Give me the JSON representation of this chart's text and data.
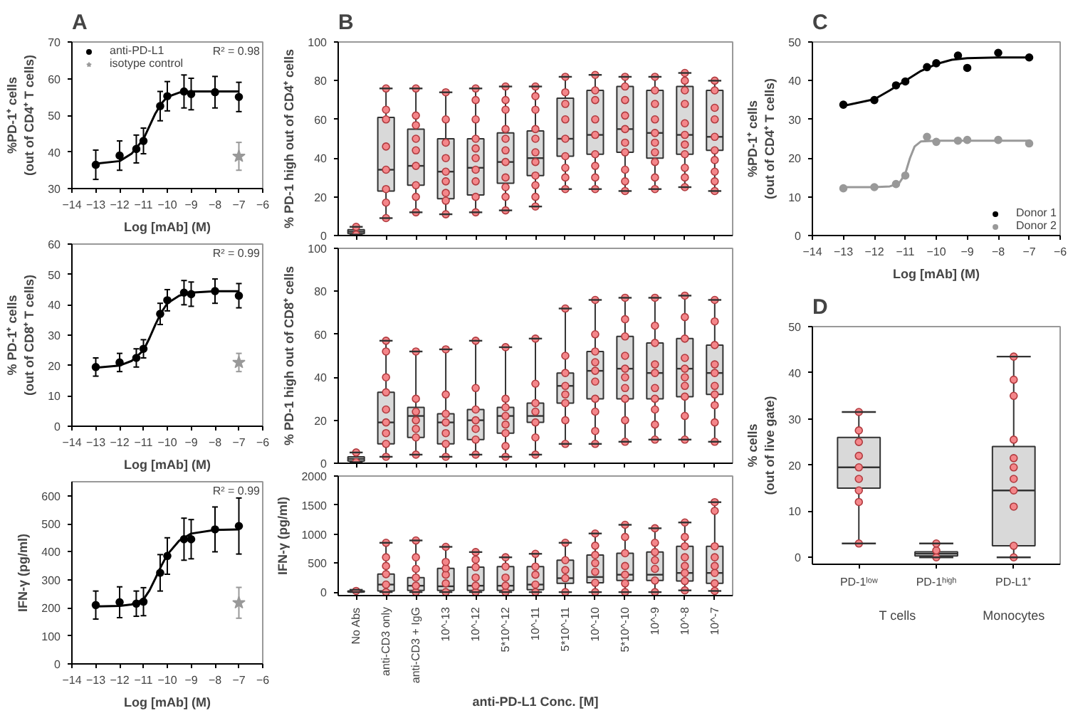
{
  "chart_data": [
    {
      "type": "scatter",
      "title": "A",
      "xlabel": "Log [mAb] (M)",
      "ylabel": "%PD-1⁺ cells\n(out of CD4⁺ T cells)",
      "xlim": [
        -14,
        -6
      ],
      "xticks": [
        -14,
        -13,
        -12,
        -11,
        -10,
        -9,
        -8,
        -7,
        -6
      ],
      "ylim": [
        30,
        70
      ],
      "yticks": [
        30,
        40,
        50,
        60,
        70
      ],
      "legend": "top left",
      "annotations": [
        "R² = 0.98"
      ],
      "series": [
        {
          "name": "anti-PD-L1",
          "type": "scatter",
          "marker": "circle",
          "color": "#000000",
          "x": [
            -13,
            -12,
            -11.3,
            -11,
            -10.3,
            -10,
            -9.3,
            -9,
            -8,
            -7
          ],
          "values": [
            36.5,
            39,
            40.8,
            43,
            52.5,
            55.2,
            56.5,
            55.8,
            56.3,
            55
          ],
          "errors": [
            4,
            4,
            3.8,
            3.5,
            4,
            4,
            4.5,
            4.3,
            4.3,
            4
          ]
        },
        {
          "type": "line",
          "color": "#000000",
          "x": [
            -13,
            -12,
            -11.5,
            -11,
            -10.75,
            -10.5,
            -10.25,
            -10,
            -9.5,
            -9,
            -8,
            -7
          ],
          "values": [
            36.8,
            37.5,
            39.5,
            43.5,
            47,
            50.5,
            53.2,
            55,
            56.2,
            56.5,
            56.5,
            56.5
          ]
        },
        {
          "name": "isotype control",
          "type": "scatter",
          "marker": "star",
          "color": "#999999",
          "x": [
            -7
          ],
          "values": [
            38.8
          ],
          "errors": [
            3.8
          ]
        }
      ]
    },
    {
      "type": "scatter",
      "xlabel": "Log [mAb] (M)",
      "ylabel": "% PD-1⁺ cells\n(out of CD8⁺ T cells)",
      "xlim": [
        -14,
        -6
      ],
      "xticks": [
        -14,
        -13,
        -12,
        -11,
        -10,
        -9,
        -8,
        -7,
        -6
      ],
      "ylim": [
        0,
        60
      ],
      "yticks": [
        0,
        10,
        20,
        30,
        40,
        50,
        60
      ],
      "annotations": [
        "R² = 0.99"
      ],
      "series": [
        {
          "type": "scatter",
          "marker": "circle",
          "color": "#000000",
          "x": [
            -13,
            -12,
            -11.3,
            -11,
            -10.3,
            -10,
            -9.3,
            -9,
            -8,
            -7
          ],
          "values": [
            19.5,
            21,
            22.5,
            25.5,
            37,
            41.5,
            44,
            43.5,
            44.5,
            43
          ],
          "errors": [
            3,
            3,
            3,
            3,
            3.5,
            3.5,
            4,
            4,
            4,
            4
          ]
        },
        {
          "type": "line",
          "color": "#000000",
          "x": [
            -13,
            -12,
            -11.5,
            -11,
            -10.75,
            -10.5,
            -10.25,
            -10,
            -9.5,
            -9,
            -8,
            -7
          ],
          "values": [
            19.3,
            20,
            21.5,
            25,
            29,
            33.5,
            37.5,
            40.5,
            43,
            44,
            44.5,
            44.5
          ]
        },
        {
          "type": "scatter",
          "marker": "star",
          "color": "#999999",
          "x": [
            -7
          ],
          "values": [
            21
          ],
          "errors": [
            3
          ]
        }
      ]
    },
    {
      "type": "scatter",
      "xlabel": "Log [mAb] (M)",
      "ylabel": "IFN-γ (pg/ml)",
      "xlim": [
        -14,
        -6
      ],
      "xticks": [
        -14,
        -13,
        -12,
        -11,
        -10,
        -9,
        -8,
        -7,
        -6
      ],
      "ylim": [
        0,
        650
      ],
      "yticks": [
        0,
        100,
        200,
        300,
        400,
        500,
        600
      ],
      "annotations": [
        "R² = 0.99"
      ],
      "series": [
        {
          "type": "scatter",
          "marker": "circle",
          "color": "#000000",
          "x": [
            -13,
            -12,
            -11.3,
            -11,
            -10.3,
            -10,
            -9.3,
            -9,
            -8,
            -7
          ],
          "values": [
            210,
            220,
            215,
            222,
            325,
            385,
            445,
            445,
            480,
            492
          ],
          "errors": [
            50,
            55,
            45,
            50,
            65,
            65,
            75,
            70,
            80,
            100
          ]
        },
        {
          "type": "line",
          "color": "#000000",
          "x": [
            -13,
            -12,
            -11.5,
            -11,
            -10.75,
            -10.5,
            -10.25,
            -10,
            -9.5,
            -9,
            -8,
            -7
          ],
          "values": [
            205,
            207,
            212,
            230,
            262,
            305,
            350,
            390,
            440,
            465,
            478,
            480
          ]
        },
        {
          "type": "scatter",
          "marker": "star",
          "color": "#999999",
          "x": [
            -7
          ],
          "values": [
            218
          ],
          "errors": [
            55
          ]
        }
      ]
    },
    {
      "type": "box",
      "title": "B",
      "ylabel": "% PD-1 high out of CD4⁺ cells",
      "color": "#d9d9d9",
      "tick_labels": "y",
      "ylim": [
        0,
        100
      ],
      "yticks": [
        0,
        20,
        40,
        60,
        80,
        100
      ],
      "categories": [
        "No Abs",
        "anti-CD3 only",
        "anti-CD3 + IgG",
        "10^-13",
        "10^-12",
        "5*10^-12",
        "10^-11",
        "5*10^-11",
        "10^-10",
        "5*10^-10",
        "10^-9",
        "10^-8",
        "10^-7"
      ],
      "boxes": [
        {
          "low": 0.5,
          "q1": 1,
          "median": 2,
          "q3": 3,
          "high": 4.5
        },
        {
          "low": 9,
          "q1": 23,
          "median": 34,
          "q3": 61,
          "high": 76
        },
        {
          "low": 12,
          "q1": 26,
          "median": 36,
          "q3": 55,
          "high": 76
        },
        {
          "low": 11,
          "q1": 19,
          "median": 33,
          "q3": 50,
          "high": 74
        },
        {
          "low": 12,
          "q1": 21,
          "median": 35,
          "q3": 50,
          "high": 76
        },
        {
          "low": 13,
          "q1": 27,
          "median": 38,
          "q3": 53,
          "high": 77
        },
        {
          "low": 15,
          "q1": 31,
          "median": 40,
          "q3": 54,
          "high": 77
        },
        {
          "low": 24,
          "q1": 41,
          "median": 50,
          "q3": 71,
          "high": 82
        },
        {
          "low": 24,
          "q1": 42,
          "median": 52,
          "q3": 75,
          "high": 83
        },
        {
          "low": 23,
          "q1": 43,
          "median": 55,
          "q3": 77,
          "high": 82
        },
        {
          "low": 24,
          "q1": 40,
          "median": 53,
          "q3": 75,
          "high": 82
        },
        {
          "low": 25,
          "q1": 42,
          "median": 52,
          "q3": 77,
          "high": 84
        },
        {
          "low": 23,
          "q1": 44,
          "median": 51,
          "q3": 75,
          "high": 80
        }
      ],
      "series": [
        {
          "type": "scatter",
          "marker": "circle",
          "color": "#f4868a",
          "x": [
            "No Abs",
            "No Abs",
            "anti-CD3 only",
            "anti-CD3 only",
            "anti-CD3 only",
            "anti-CD3 only",
            "anti-CD3 only",
            "anti-CD3 only",
            "anti-CD3 only",
            "anti-CD3 only",
            "anti-CD3 + IgG",
            "anti-CD3 + IgG",
            "anti-CD3 + IgG",
            "anti-CD3 + IgG",
            "anti-CD3 + IgG",
            "anti-CD3 + IgG",
            "anti-CD3 + IgG",
            "anti-CD3 + IgG",
            "anti-CD3 + IgG",
            "10^-13",
            "10^-13",
            "10^-13",
            "10^-13",
            "10^-13",
            "10^-13",
            "10^-13",
            "10^-13",
            "10^-13",
            "10^-12",
            "10^-12",
            "10^-12",
            "10^-12",
            "10^-12",
            "10^-12",
            "10^-12",
            "10^-12",
            "10^-12",
            "10^-12",
            "5*10^-12",
            "5*10^-12",
            "5*10^-12",
            "5*10^-12",
            "5*10^-12",
            "5*10^-12",
            "5*10^-12",
            "5*10^-12",
            "5*10^-12",
            "5*10^-12",
            "5*10^-12",
            "10^-11",
            "10^-11",
            "10^-11",
            "10^-11",
            "10^-11",
            "10^-11",
            "10^-11",
            "10^-11",
            "10^-11",
            "10^-11",
            "10^-11",
            "5*10^-11",
            "5*10^-11",
            "5*10^-11",
            "5*10^-11",
            "5*10^-11",
            "5*10^-11",
            "5*10^-11",
            "5*10^-11",
            "5*10^-11",
            "10^-10",
            "10^-10",
            "10^-10",
            "10^-10",
            "10^-10",
            "10^-10",
            "10^-10",
            "10^-10",
            "10^-10",
            "5*10^-10",
            "5*10^-10",
            "5*10^-10",
            "5*10^-10",
            "5*10^-10",
            "5*10^-10",
            "5*10^-10",
            "5*10^-10",
            "5*10^-10",
            "5*10^-10",
            "10^-9",
            "10^-9",
            "10^-9",
            "10^-9",
            "10^-9",
            "10^-9",
            "10^-9",
            "10^-9",
            "10^-9",
            "10^-9",
            "10^-8",
            "10^-8",
            "10^-8",
            "10^-8",
            "10^-8",
            "10^-8",
            "10^-8",
            "10^-8",
            "10^-8",
            "10^-8",
            "10^-8",
            "10^-7",
            "10^-7",
            "10^-7",
            "10^-7",
            "10^-7",
            "10^-7",
            "10^-7",
            "10^-7",
            "10^-7",
            "10^-7"
          ],
          "values": [
            0.5,
            4.5,
            9,
            17,
            24,
            34,
            46,
            60,
            65,
            76,
            12,
            20,
            26,
            36,
            44,
            50,
            57,
            62,
            76,
            11,
            18,
            22,
            28,
            33,
            40,
            48,
            60,
            74,
            12,
            20,
            28,
            34,
            40,
            45,
            50,
            60,
            70,
            76,
            13,
            20,
            25,
            30,
            38,
            44,
            50,
            55,
            65,
            70,
            77,
            15,
            20,
            26,
            31,
            38,
            43,
            50,
            55,
            65,
            72,
            77,
            24,
            30,
            35,
            41,
            50,
            60,
            68,
            74,
            82,
            24,
            30,
            36,
            42,
            52,
            60,
            70,
            75,
            83,
            23,
            28,
            34,
            43,
            48,
            55,
            62,
            70,
            77,
            82,
            24,
            30,
            38,
            43,
            48,
            53,
            60,
            68,
            75,
            82,
            25,
            30,
            35,
            42,
            47,
            52,
            58,
            68,
            75,
            80,
            84,
            23,
            28,
            33,
            39,
            44,
            51,
            60,
            66,
            75,
            80
          ]
        }
      ]
    },
    {
      "type": "box",
      "ylabel": "% PD-1 high out of CD8⁺ cells",
      "color": "#d9d9d9",
      "tick_labels": "y",
      "ylim": [
        0,
        100
      ],
      "yticks": [
        0,
        20,
        40,
        60,
        80,
        100
      ],
      "categories": [
        "No Abs",
        "anti-CD3 only",
        "anti-CD3 + IgG",
        "10^-13",
        "10^-12",
        "5*10^-12",
        "10^-11",
        "5*10^-11",
        "10^-10",
        "5*10^-10",
        "10^-9",
        "10^-8",
        "10^-7"
      ],
      "boxes": [
        {
          "low": 0.5,
          "q1": 1,
          "median": 2,
          "q3": 3,
          "high": 5
        },
        {
          "low": 3,
          "q1": 9,
          "median": 19,
          "q3": 33,
          "high": 57
        },
        {
          "low": 4,
          "q1": 12,
          "median": 22,
          "q3": 26,
          "high": 52
        },
        {
          "low": 3,
          "q1": 9,
          "median": 19,
          "q3": 23,
          "high": 53
        },
        {
          "low": 4,
          "q1": 11,
          "median": 20,
          "q3": 25,
          "high": 57
        },
        {
          "low": 3,
          "q1": 14,
          "median": 22,
          "q3": 26,
          "high": 54
        },
        {
          "low": 4,
          "q1": 19,
          "median": 22,
          "q3": 28,
          "high": 58
        },
        {
          "low": 9,
          "q1": 28,
          "median": 36,
          "q3": 42,
          "high": 72
        },
        {
          "low": 9,
          "q1": 30,
          "median": 43,
          "q3": 52,
          "high": 76
        },
        {
          "low": 10,
          "q1": 30,
          "median": 44,
          "q3": 59,
          "high": 77
        },
        {
          "low": 11,
          "q1": 30,
          "median": 42,
          "q3": 56,
          "high": 77
        },
        {
          "low": 11,
          "q1": 31,
          "median": 44,
          "q3": 58,
          "high": 78
        },
        {
          "low": 10,
          "q1": 32,
          "median": 42,
          "q3": 55,
          "high": 76
        }
      ],
      "series": [
        {
          "type": "scatter",
          "marker": "circle",
          "color": "#f4868a",
          "x": [
            "No Abs",
            "No Abs",
            "anti-CD3 only",
            "anti-CD3 only",
            "anti-CD3 only",
            "anti-CD3 only",
            "anti-CD3 only",
            "anti-CD3 only",
            "anti-CD3 only",
            "anti-CD3 only",
            "anti-CD3 only",
            "anti-CD3 + IgG",
            "anti-CD3 + IgG",
            "anti-CD3 + IgG",
            "anti-CD3 + IgG",
            "anti-CD3 + IgG",
            "anti-CD3 + IgG",
            "anti-CD3 + IgG",
            "10^-13",
            "10^-13",
            "10^-13",
            "10^-13",
            "10^-13",
            "10^-13",
            "10^-13",
            "10^-12",
            "10^-12",
            "10^-12",
            "10^-12",
            "10^-12",
            "10^-12",
            "10^-12",
            "5*10^-12",
            "5*10^-12",
            "5*10^-12",
            "5*10^-12",
            "5*10^-12",
            "5*10^-12",
            "5*10^-12",
            "5*10^-12",
            "10^-11",
            "10^-11",
            "10^-11",
            "10^-11",
            "10^-11",
            "10^-11",
            "10^-11",
            "5*10^-11",
            "5*10^-11",
            "5*10^-11",
            "5*10^-11",
            "5*10^-11",
            "5*10^-11",
            "5*10^-11",
            "5*10^-11",
            "10^-10",
            "10^-10",
            "10^-10",
            "10^-10",
            "10^-10",
            "10^-10",
            "10^-10",
            "10^-10",
            "10^-10",
            "10^-10",
            "5*10^-10",
            "5*10^-10",
            "5*10^-10",
            "5*10^-10",
            "5*10^-10",
            "5*10^-10",
            "5*10^-10",
            "5*10^-10",
            "5*10^-10",
            "5*10^-10",
            "10^-9",
            "10^-9",
            "10^-9",
            "10^-9",
            "10^-9",
            "10^-9",
            "10^-9",
            "10^-9",
            "10^-9",
            "10^-9",
            "10^-8",
            "10^-8",
            "10^-8",
            "10^-8",
            "10^-8",
            "10^-8",
            "10^-8",
            "10^-8",
            "10^-8",
            "10^-8",
            "10^-7",
            "10^-7",
            "10^-7",
            "10^-7",
            "10^-7",
            "10^-7",
            "10^-7",
            "10^-7",
            "10^-7",
            "10^-7"
          ],
          "values": [
            0.5,
            5,
            3,
            9,
            14,
            19,
            25,
            33,
            40,
            52,
            57,
            4,
            12,
            16,
            20,
            24,
            30,
            52,
            3,
            9,
            14,
            19,
            23,
            32,
            53,
            4,
            11,
            16,
            20,
            25,
            35,
            57,
            3,
            8,
            14,
            18,
            22,
            26,
            30,
            54,
            4,
            12,
            19,
            24,
            28,
            37,
            58,
            9,
            20,
            28,
            32,
            36,
            42,
            50,
            72,
            9,
            15,
            24,
            30,
            38,
            43,
            47,
            52,
            60,
            76,
            10,
            20,
            30,
            35,
            40,
            44,
            50,
            59,
            67,
            77,
            11,
            18,
            25,
            30,
            35,
            42,
            46,
            56,
            64,
            77,
            11,
            22,
            31,
            36,
            40,
            44,
            49,
            58,
            68,
            78,
            10,
            19,
            27,
            32,
            36,
            42,
            46,
            55,
            66,
            76
          ]
        }
      ]
    },
    {
      "type": "box",
      "ylabel": "IFN-γ (pg/ml)",
      "xlabel": "anti-PD-L1 Conc. [M]",
      "color": "#d9d9d9",
      "ylim": [
        -60,
        2000
      ],
      "yticks": [
        0,
        500,
        1000,
        1500,
        2000
      ],
      "categories": [
        "No Abs",
        "anti-CD3 only",
        "anti-CD3 + IgG",
        "10^-13",
        "10^-12",
        "5*10^-12",
        "10^-11",
        "5*10^-11",
        "10^-10",
        "5*10^-10",
        "10^-9",
        "10^-8",
        "10^-7"
      ],
      "boxes": [
        {
          "low": 0,
          "q1": 0,
          "median": 10,
          "q3": 20,
          "high": 40
        },
        {
          "low": 0,
          "q1": 20,
          "median": 130,
          "q3": 310,
          "high": 850
        },
        {
          "low": 0,
          "q1": 30,
          "median": 110,
          "q3": 250,
          "high": 890
        },
        {
          "low": 0,
          "q1": 30,
          "median": 100,
          "q3": 410,
          "high": 780
        },
        {
          "low": 0,
          "q1": 30,
          "median": 110,
          "q3": 430,
          "high": 690
        },
        {
          "low": 0,
          "q1": 30,
          "median": 110,
          "q3": 440,
          "high": 600
        },
        {
          "low": 0,
          "q1": 40,
          "median": 130,
          "q3": 440,
          "high": 660
        },
        {
          "low": 0,
          "q1": 150,
          "median": 240,
          "q3": 550,
          "high": 850
        },
        {
          "low": 0,
          "q1": 160,
          "median": 260,
          "q3": 640,
          "high": 1010
        },
        {
          "low": 0,
          "q1": 200,
          "median": 300,
          "q3": 670,
          "high": 1160
        },
        {
          "low": 0,
          "q1": 200,
          "median": 300,
          "q3": 690,
          "high": 1100
        },
        {
          "low": 30,
          "q1": 190,
          "median": 330,
          "q3": 790,
          "high": 1200
        },
        {
          "low": 20,
          "q1": 150,
          "median": 330,
          "q3": 790,
          "high": 1550
        }
      ],
      "series": [
        {
          "type": "scatter",
          "marker": "circle",
          "color": "#f4868a",
          "x": [
            "No Abs",
            "anti-CD3 only",
            "anti-CD3 only",
            "anti-CD3 only",
            "anti-CD3 only",
            "anti-CD3 only",
            "anti-CD3 only",
            "anti-CD3 + IgG",
            "anti-CD3 + IgG",
            "anti-CD3 + IgG",
            "anti-CD3 + IgG",
            "anti-CD3 + IgG",
            "anti-CD3 + IgG",
            "10^-13",
            "10^-13",
            "10^-13",
            "10^-13",
            "10^-13",
            "10^-13",
            "10^-12",
            "10^-12",
            "10^-12",
            "10^-12",
            "10^-12",
            "10^-12",
            "5*10^-12",
            "5*10^-12",
            "5*10^-12",
            "5*10^-12",
            "5*10^-12",
            "10^-11",
            "10^-11",
            "10^-11",
            "10^-11",
            "10^-11",
            "5*10^-11",
            "5*10^-11",
            "5*10^-11",
            "5*10^-11",
            "5*10^-11",
            "10^-10",
            "10^-10",
            "10^-10",
            "10^-10",
            "10^-10",
            "10^-10",
            "10^-10",
            "5*10^-10",
            "5*10^-10",
            "5*10^-10",
            "5*10^-10",
            "5*10^-10",
            "5*10^-10",
            "5*10^-10",
            "10^-9",
            "10^-9",
            "10^-9",
            "10^-9",
            "10^-9",
            "10^-9",
            "10^-9",
            "10^-8",
            "10^-8",
            "10^-8",
            "10^-8",
            "10^-8",
            "10^-8",
            "10^-8",
            "10^-8",
            "10^-7",
            "10^-7",
            "10^-7",
            "10^-7",
            "10^-7",
            "10^-7",
            "10^-7",
            "10^-7"
          ],
          "values": [
            20,
            0,
            130,
            310,
            450,
            600,
            850,
            0,
            110,
            250,
            400,
            600,
            890,
            0,
            150,
            300,
            410,
            520,
            780,
            0,
            110,
            250,
            430,
            560,
            690,
            0,
            110,
            250,
            440,
            600,
            0,
            130,
            300,
            440,
            660,
            0,
            240,
            380,
            550,
            850,
            0,
            160,
            350,
            500,
            640,
            800,
            1010,
            0,
            150,
            300,
            450,
            670,
            950,
            1160,
            0,
            200,
            400,
            550,
            690,
            850,
            1100,
            30,
            190,
            330,
            450,
            600,
            790,
            950,
            1200,
            20,
            150,
            330,
            450,
            600,
            790,
            1400,
            1550
          ]
        }
      ]
    },
    {
      "type": "scatter",
      "title": "C",
      "xlabel": "Log [mAb] (M)",
      "ylabel": "%PD-1⁺ cells\n(out of CD4⁺ T cells)",
      "xlim": [
        -14,
        -6
      ],
      "xticks": [
        -14,
        -13,
        -12,
        -11,
        -10,
        -9,
        -8,
        -7,
        -6
      ],
      "ylim": [
        0,
        50
      ],
      "yticks": [
        0,
        10,
        20,
        30,
        40,
        50
      ],
      "legend": "bottom right",
      "series": [
        {
          "name": "Donor 1",
          "type": "scatter",
          "marker": "circle",
          "color": "#000000",
          "x": [
            -13,
            -12,
            -11.3,
            -11,
            -10.3,
            -10,
            -9.3,
            -9,
            -8,
            -7
          ],
          "values": [
            33.8,
            35,
            38.8,
            39.8,
            43.5,
            44.5,
            46.5,
            43.3,
            47.2,
            46
          ]
        },
        {
          "type": "line",
          "color": "#000000",
          "x": [
            -13,
            -12,
            -11.5,
            -11,
            -10.5,
            -10,
            -9.5,
            -9,
            -8,
            -7
          ],
          "values": [
            33.5,
            35.2,
            37.5,
            40,
            42.5,
            44.3,
            45.4,
            45.8,
            46,
            46
          ]
        },
        {
          "name": "Donor 2",
          "type": "scatter",
          "marker": "circle",
          "color": "#999999",
          "x": [
            -13,
            -12,
            -11.3,
            -11,
            -10.3,
            -10,
            -9.3,
            -9,
            -8,
            -7
          ],
          "values": [
            12.2,
            12.5,
            13.3,
            15.5,
            25.5,
            24.2,
            24.5,
            24.7,
            24.7,
            23.8
          ]
        },
        {
          "type": "line",
          "color": "#999999",
          "x": [
            -13,
            -12,
            -11.5,
            -11.2,
            -11,
            -10.85,
            -10.7,
            -10.5,
            -10,
            -7
          ],
          "values": [
            12.5,
            12.5,
            12.7,
            13.5,
            16,
            20,
            23,
            24.3,
            24.5,
            24.5
          ]
        }
      ]
    },
    {
      "type": "box",
      "title": "D",
      "ylabel": "% cells\n(out of live gate)",
      "color": "#d9d9d9",
      "ylim": [
        -1.5,
        50
      ],
      "yticks": [
        0,
        10,
        20,
        30,
        40,
        50
      ],
      "annotations": [
        "T cells",
        "Monocytes"
      ],
      "categories": [
        "PD-1ˡᵒʷ",
        "PD-1ʰⁱᵍʰ",
        "PD-L1⁺"
      ],
      "boxes": [
        {
          "low": 3,
          "q1": 15,
          "median": 19.5,
          "q3": 26,
          "high": 31.5
        },
        {
          "low": 0,
          "q1": 0.3,
          "median": 0.8,
          "q3": 1.2,
          "high": 3
        },
        {
          "low": 0,
          "q1": 2.5,
          "median": 14.5,
          "q3": 24,
          "high": 43.5
        }
      ],
      "series": [
        {
          "type": "scatter",
          "marker": "circle",
          "color": "#f4868a",
          "x": [
            "PD-1ˡᵒʷ",
            "PD-1ˡᵒʷ",
            "PD-1ˡᵒʷ",
            "PD-1ˡᵒʷ",
            "PD-1ˡᵒʷ",
            "PD-1ˡᵒʷ",
            "PD-1ˡᵒʷ",
            "PD-1ˡᵒʷ",
            "PD-1ˡᵒʷ",
            "PD-1ʰⁱᵍʰ",
            "PD-1ʰⁱᵍʰ",
            "PD-1ʰⁱᵍʰ",
            "PD-L1⁺",
            "PD-L1⁺",
            "PD-L1⁺",
            "PD-L1⁺",
            "PD-L1⁺",
            "PD-L1⁺",
            "PD-L1⁺",
            "PD-L1⁺",
            "PD-L1⁺",
            "PD-L1⁺",
            "PD-L1⁺"
          ],
          "values": [
            3,
            12,
            14.5,
            17,
            19.5,
            22,
            25,
            27.5,
            31.5,
            0,
            1.5,
            3,
            0,
            2.5,
            11,
            14.5,
            17,
            19.5,
            21.5,
            25.5,
            35,
            38.5,
            43.5
          ]
        }
      ]
    }
  ]
}
